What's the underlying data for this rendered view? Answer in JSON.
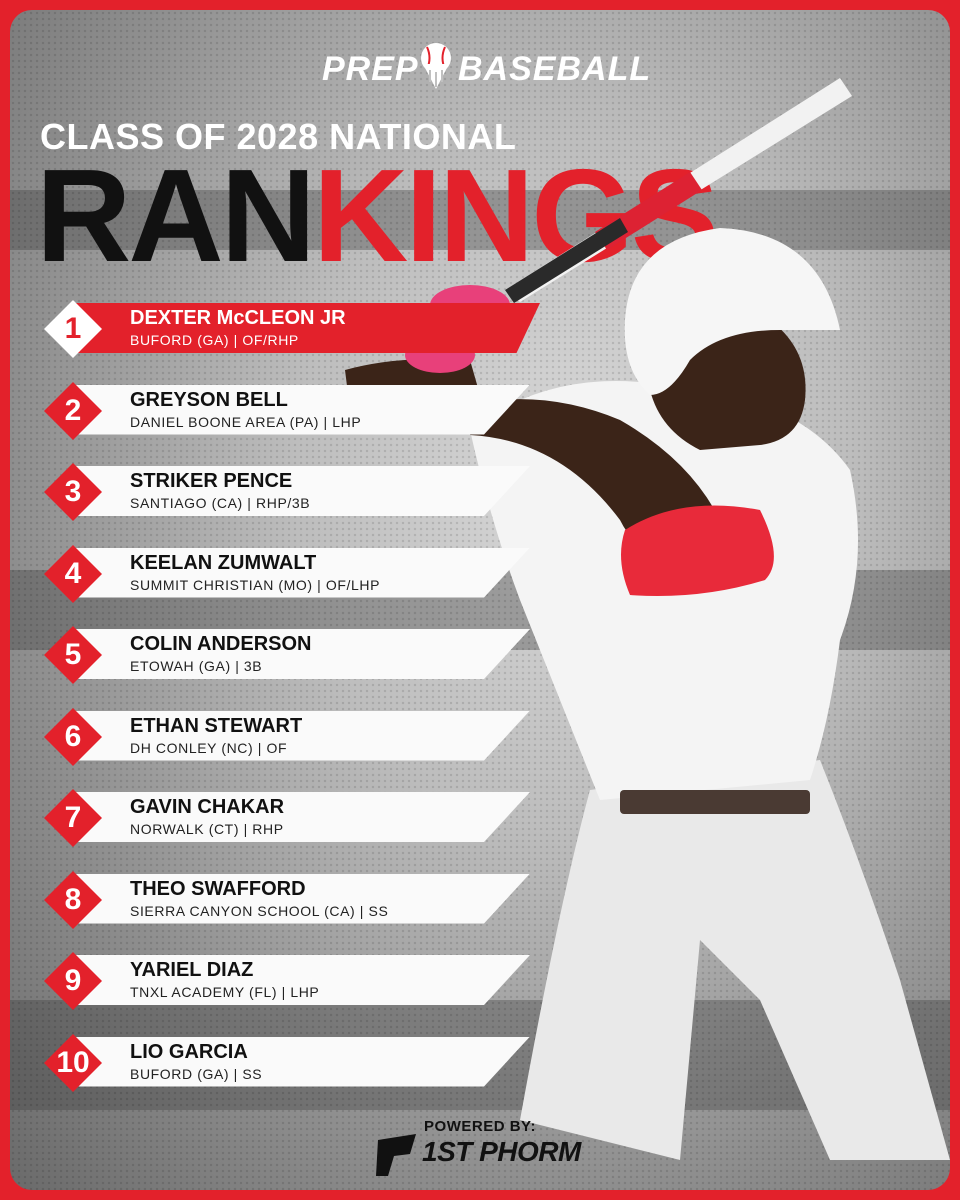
{
  "brand": {
    "left": "PREP",
    "right": "BASEBALL"
  },
  "subtitle": "CLASS OF 2028 NATIONAL",
  "headline": {
    "dark": "RAN",
    "red": "KINGS"
  },
  "colors": {
    "accent": "#e3212b",
    "bar": "#fafafa",
    "text": "#111111"
  },
  "rankings": [
    {
      "rank": "1",
      "name": "DEXTER McCLEON JR",
      "info": "BUFORD (GA) | OF/RHP",
      "highlight": true
    },
    {
      "rank": "2",
      "name": "GREYSON BELL",
      "info": "DANIEL BOONE AREA (PA) | LHP"
    },
    {
      "rank": "3",
      "name": "STRIKER PENCE",
      "info": "SANTIAGO (CA) | RHP/3B"
    },
    {
      "rank": "4",
      "name": "KEELAN ZUMWALT",
      "info": "SUMMIT CHRISTIAN (MO) | OF/LHP"
    },
    {
      "rank": "5",
      "name": "COLIN ANDERSON",
      "info": "ETOWAH (GA) | 3B"
    },
    {
      "rank": "6",
      "name": "ETHAN STEWART",
      "info": "DH CONLEY (NC) | OF"
    },
    {
      "rank": "7",
      "name": "GAVIN CHAKAR",
      "info": "NORWALK (CT) | RHP"
    },
    {
      "rank": "8",
      "name": "THEO SWAFFORD",
      "info": "SIERRA CANYON SCHOOL (CA) | SS"
    },
    {
      "rank": "9",
      "name": "YARIEL DIAZ",
      "info": "TNXL ACADEMY (FL) | LHP"
    },
    {
      "rank": "10",
      "name": "LIO GARCIA",
      "info": "BUFORD (GA) | SS"
    }
  ],
  "sponsor": {
    "powered_by": "POWERED BY:",
    "name": "1ST PHORM"
  }
}
